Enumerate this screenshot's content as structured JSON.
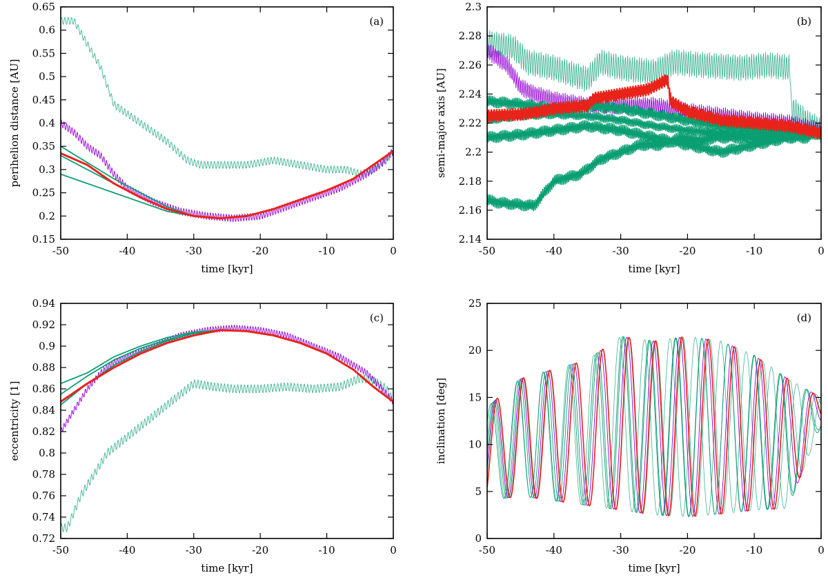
{
  "colors": {
    "green": "#0a9e73",
    "green_light": "#3fb391",
    "purple": "#9400d3",
    "red": "#e8231a"
  },
  "chart_data": [
    {
      "id": "a",
      "type": "line",
      "panel_label": "(a)",
      "xlabel": "time [kyr]",
      "ylabel": "perihelion distance [AU]",
      "xlim": [
        -50,
        0
      ],
      "ylim": [
        0.15,
        0.65
      ],
      "xticks": [
        -50,
        -40,
        -30,
        -20,
        -10,
        0
      ],
      "yticks": [
        0.15,
        0.2,
        0.25,
        0.3,
        0.35,
        0.4,
        0.45,
        0.5,
        0.55,
        0.6,
        0.65
      ],
      "series": [
        {
          "color": "green_light",
          "width": 0.9,
          "amp": 0.008,
          "period": 0.5,
          "x": [
            -50,
            -48,
            -46,
            -44,
            -42,
            -40,
            -37,
            -34,
            -31,
            -29,
            -26,
            -22,
            -18,
            -14,
            -10,
            -7,
            -5,
            -3,
            -1,
            0
          ],
          "y": [
            0.62,
            0.62,
            0.57,
            0.52,
            0.44,
            0.42,
            0.39,
            0.36,
            0.32,
            0.31,
            0.31,
            0.31,
            0.32,
            0.31,
            0.3,
            0.3,
            0.29,
            0.3,
            0.32,
            0.34
          ]
        },
        {
          "color": "purple",
          "width": 0.9,
          "amp": 0.008,
          "period": 0.4,
          "x": [
            -50,
            -48,
            -46,
            -44,
            -42,
            -40,
            -36,
            -32,
            -28,
            -24,
            -20,
            -16,
            -12,
            -8,
            -4,
            -2,
            0
          ],
          "y": [
            0.4,
            0.38,
            0.35,
            0.33,
            0.29,
            0.26,
            0.23,
            0.21,
            0.2,
            0.195,
            0.2,
            0.22,
            0.24,
            0.26,
            0.29,
            0.31,
            0.34
          ]
        },
        {
          "color": "green",
          "width": 1.8,
          "amp": 0.0,
          "period": 1,
          "x": [
            -50,
            -46,
            -42,
            -38,
            -34,
            -30,
            -26,
            -22,
            -18,
            -14,
            -10,
            -6,
            -3,
            0
          ],
          "y": [
            0.29,
            0.27,
            0.25,
            0.23,
            0.21,
            0.2,
            0.195,
            0.2,
            0.215,
            0.235,
            0.255,
            0.28,
            0.31,
            0.34
          ]
        },
        {
          "color": "green",
          "width": 1.8,
          "amp": 0.0,
          "period": 1,
          "x": [
            -50,
            -46,
            -42,
            -38,
            -34,
            -30,
            -26,
            -22,
            -18,
            -14,
            -10,
            -6,
            -3,
            0
          ],
          "y": [
            0.35,
            0.315,
            0.28,
            0.25,
            0.22,
            0.2,
            0.195,
            0.2,
            0.215,
            0.235,
            0.255,
            0.28,
            0.31,
            0.34
          ]
        },
        {
          "color": "green",
          "width": 1.8,
          "amp": 0.0,
          "period": 1,
          "x": [
            -50,
            -46,
            -42,
            -38,
            -34,
            -30,
            -26,
            -22,
            -18,
            -14,
            -10,
            -6,
            -3,
            0
          ],
          "y": [
            0.33,
            0.3,
            0.27,
            0.24,
            0.215,
            0.2,
            0.195,
            0.2,
            0.215,
            0.235,
            0.255,
            0.28,
            0.31,
            0.34
          ]
        },
        {
          "color": "red",
          "width": 3.0,
          "amp": 0.0,
          "period": 1,
          "x": [
            -50,
            -46,
            -42,
            -38,
            -34,
            -30,
            -26,
            -22,
            -18,
            -14,
            -10,
            -6,
            -3,
            0
          ],
          "y": [
            0.335,
            0.31,
            0.27,
            0.24,
            0.215,
            0.2,
            0.195,
            0.2,
            0.215,
            0.235,
            0.255,
            0.28,
            0.31,
            0.34
          ]
        }
      ]
    },
    {
      "id": "b",
      "type": "line",
      "panel_label": "(b)",
      "xlabel": "time [kyr]",
      "ylabel": "semi-major axis [AU]",
      "xlim": [
        -50,
        0
      ],
      "ylim": [
        2.14,
        2.3
      ],
      "xticks": [
        -50,
        -40,
        -30,
        -20,
        -10,
        0
      ],
      "yticks": [
        2.14,
        2.16,
        2.18,
        2.2,
        2.22,
        2.24,
        2.26,
        2.28,
        2.3
      ],
      "series": [
        {
          "color": "green_light",
          "width": 0.9,
          "amp": 0.009,
          "period": 0.35,
          "x": [
            -50,
            -46,
            -44,
            -40,
            -35,
            -33,
            -30,
            -25,
            -22,
            -18,
            -12,
            -8,
            -4.6,
            -4.5,
            -2,
            0
          ],
          "y": [
            2.275,
            2.272,
            2.262,
            2.258,
            2.25,
            2.262,
            2.258,
            2.255,
            2.262,
            2.26,
            2.258,
            2.26,
            2.258,
            2.23,
            2.22,
            2.215
          ]
        },
        {
          "color": "purple",
          "width": 0.9,
          "amp": 0.006,
          "period": 0.3,
          "x": [
            -50,
            -47,
            -45,
            -43,
            -40,
            -35,
            -30,
            -25,
            -20,
            -15,
            -10,
            -5,
            0
          ],
          "y": [
            2.27,
            2.26,
            2.245,
            2.24,
            2.236,
            2.232,
            2.232,
            2.232,
            2.228,
            2.225,
            2.222,
            2.22,
            2.215
          ]
        },
        {
          "color": "green",
          "width": 1.6,
          "amp": 0.004,
          "period": 0.25,
          "x": [
            -50,
            -48,
            -43,
            -40,
            -36,
            -33,
            -30,
            -27,
            -24,
            -21,
            -18,
            -16,
            -10,
            -5,
            -2,
            0
          ],
          "y": [
            2.167,
            2.165,
            2.163,
            2.18,
            2.185,
            2.195,
            2.2,
            2.205,
            2.205,
            2.21,
            2.208,
            2.21,
            2.21,
            2.21,
            2.21,
            2.215
          ]
        },
        {
          "color": "green",
          "width": 1.6,
          "amp": 0.004,
          "period": 0.25,
          "x": [
            -50,
            -45,
            -40,
            -35,
            -30,
            -25,
            -20,
            -15,
            -10,
            -5,
            0
          ],
          "y": [
            2.21,
            2.212,
            2.215,
            2.218,
            2.215,
            2.21,
            2.205,
            2.2,
            2.205,
            2.21,
            2.213
          ]
        },
        {
          "color": "green",
          "width": 1.6,
          "amp": 0.004,
          "period": 0.25,
          "x": [
            -50,
            -45,
            -40,
            -35,
            -30,
            -25,
            -20,
            -15,
            -10,
            -5,
            0
          ],
          "y": [
            2.235,
            2.233,
            2.23,
            2.232,
            2.23,
            2.226,
            2.222,
            2.218,
            2.216,
            2.215,
            2.214
          ]
        },
        {
          "color": "green",
          "width": 1.6,
          "amp": 0.003,
          "period": 0.25,
          "x": [
            -50,
            -45,
            -40,
            -35,
            -30,
            -25,
            -20,
            -15,
            -10,
            -5,
            0
          ],
          "y": [
            2.222,
            2.225,
            2.226,
            2.225,
            2.222,
            2.218,
            2.215,
            2.213,
            2.212,
            2.213,
            2.214
          ]
        },
        {
          "color": "red",
          "width": 2.6,
          "amp": 0.004,
          "period": 0.2,
          "x": [
            -50,
            -45,
            -42,
            -40,
            -35,
            -34,
            -30,
            -26,
            -23,
            -22.5,
            -20,
            -15,
            -10,
            -5,
            0
          ],
          "y": [
            2.225,
            2.226,
            2.228,
            2.23,
            2.232,
            2.237,
            2.24,
            2.243,
            2.25,
            2.235,
            2.228,
            2.222,
            2.22,
            2.218,
            2.213
          ]
        }
      ]
    },
    {
      "id": "c",
      "type": "line",
      "panel_label": "(c)",
      "xlabel": "time [kyr]",
      "ylabel": "eccentricity [1]",
      "xlim": [
        -50,
        0
      ],
      "ylim": [
        0.72,
        0.94
      ],
      "xticks": [
        -50,
        -40,
        -30,
        -20,
        -10,
        0
      ],
      "yticks": [
        0.72,
        0.74,
        0.76,
        0.78,
        0.8,
        0.82,
        0.84,
        0.86,
        0.88,
        0.9,
        0.92,
        0.94
      ],
      "series": [
        {
          "color": "green_light",
          "width": 0.9,
          "amp": 0.004,
          "period": 0.5,
          "x": [
            -50,
            -49,
            -47,
            -45,
            -43,
            -40,
            -37,
            -35,
            -32,
            -30,
            -27,
            -24,
            -20,
            -16,
            -12,
            -8,
            -5,
            -3,
            -1,
            0
          ],
          "y": [
            0.73,
            0.73,
            0.76,
            0.78,
            0.8,
            0.815,
            0.83,
            0.84,
            0.855,
            0.865,
            0.862,
            0.86,
            0.86,
            0.862,
            0.86,
            0.862,
            0.87,
            0.868,
            0.86,
            0.848
          ]
        },
        {
          "color": "purple",
          "width": 0.9,
          "amp": 0.003,
          "period": 0.4,
          "x": [
            -50,
            -48,
            -46,
            -44,
            -42,
            -40,
            -36,
            -32,
            -28,
            -24,
            -20,
            -16,
            -12,
            -8,
            -4,
            -2,
            0
          ],
          "y": [
            0.82,
            0.84,
            0.86,
            0.875,
            0.885,
            0.89,
            0.9,
            0.91,
            0.915,
            0.917,
            0.915,
            0.91,
            0.9,
            0.89,
            0.875,
            0.862,
            0.848
          ]
        },
        {
          "color": "green",
          "width": 1.8,
          "amp": 0.0,
          "period": 1,
          "x": [
            -50,
            -46,
            -42,
            -38,
            -34,
            -30,
            -26,
            -22,
            -18,
            -14,
            -10,
            -6,
            -3,
            0
          ],
          "y": [
            0.865,
            0.875,
            0.89,
            0.9,
            0.908,
            0.913,
            0.915,
            0.914,
            0.91,
            0.903,
            0.893,
            0.878,
            0.862,
            0.848
          ]
        },
        {
          "color": "green",
          "width": 1.8,
          "amp": 0.0,
          "period": 1,
          "x": [
            -50,
            -46,
            -42,
            -38,
            -34,
            -30,
            -26,
            -22,
            -18,
            -14,
            -10,
            -6,
            -3,
            0
          ],
          "y": [
            0.845,
            0.865,
            0.882,
            0.895,
            0.905,
            0.912,
            0.915,
            0.914,
            0.91,
            0.903,
            0.893,
            0.878,
            0.862,
            0.848
          ]
        },
        {
          "color": "green",
          "width": 1.8,
          "amp": 0.0,
          "period": 1,
          "x": [
            -50,
            -46,
            -42,
            -38,
            -34,
            -30,
            -26,
            -22,
            -18,
            -14,
            -10,
            -6,
            -3,
            0
          ],
          "y": [
            0.855,
            0.872,
            0.887,
            0.898,
            0.906,
            0.912,
            0.915,
            0.914,
            0.91,
            0.903,
            0.893,
            0.878,
            0.862,
            0.848
          ]
        },
        {
          "color": "red",
          "width": 3.0,
          "amp": 0.0,
          "period": 1,
          "x": [
            -50,
            -46,
            -42,
            -38,
            -34,
            -30,
            -26,
            -22,
            -18,
            -14,
            -10,
            -6,
            -3,
            0
          ],
          "y": [
            0.848,
            0.865,
            0.88,
            0.893,
            0.903,
            0.91,
            0.915,
            0.914,
            0.91,
            0.903,
            0.893,
            0.878,
            0.862,
            0.848
          ]
        }
      ]
    },
    {
      "id": "d",
      "type": "line",
      "panel_label": "(d)",
      "xlabel": "time [kyr]",
      "ylabel": "inclination [deg]",
      "xlim": [
        -50,
        0
      ],
      "ylim": [
        0,
        25
      ],
      "xticks": [
        -50,
        -40,
        -30,
        -20,
        -10,
        0
      ],
      "yticks": [
        0,
        5,
        10,
        15,
        20,
        25
      ],
      "osc": [
        {
          "color": "green_light",
          "width": 0.8,
          "t0": -49.5,
          "period": 4.0,
          "phase": 0.3
        },
        {
          "color": "green_light",
          "width": 0.8,
          "t0": -49.5,
          "period": 3.8,
          "phase": 1.1
        },
        {
          "color": "green",
          "width": 0.9,
          "t0": -49.5,
          "period": 3.9,
          "phase": 0.8
        },
        {
          "color": "green",
          "width": 0.9,
          "t0": -49.5,
          "period": 3.95,
          "phase": 1.5
        },
        {
          "color": "purple",
          "width": 0.9,
          "t0": -49.5,
          "period": 3.95,
          "phase": 0.5
        },
        {
          "color": "red",
          "width": 1.6,
          "t0": -49.5,
          "period": 3.95,
          "phase": 0.0
        }
      ],
      "envelope": {
        "x": [
          -50,
          -45,
          -40,
          -35,
          -30,
          -25,
          -20,
          -15,
          -10,
          -5,
          0
        ],
        "lo": [
          4,
          4.5,
          4,
          3.5,
          3,
          2.5,
          2.3,
          2.6,
          3,
          3.2,
          12
        ],
        "hi": [
          14,
          17,
          18,
          19,
          21.5,
          21,
          21.5,
          21,
          19.5,
          17,
          15
        ]
      }
    }
  ]
}
